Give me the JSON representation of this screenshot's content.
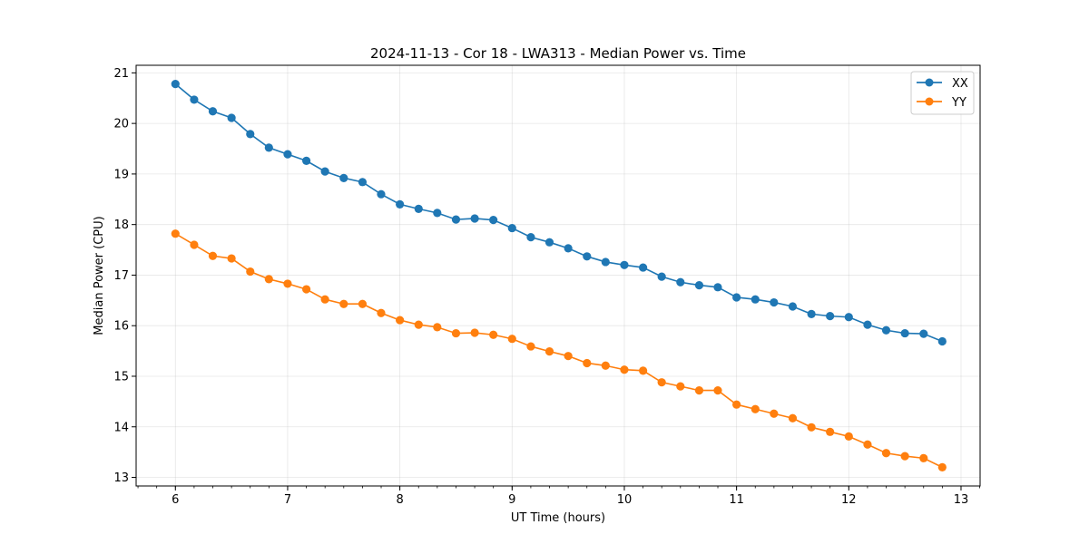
{
  "chart_data": {
    "type": "line",
    "title": "2024-11-13 - Cor 18 - LWA313 - Median Power vs. Time",
    "xlabel": "UT Time (hours)",
    "ylabel": "Median Power (CPU)",
    "xlim": [
      5.65,
      13.17
    ],
    "ylim": [
      12.83,
      21.15
    ],
    "xticks": [
      6,
      7,
      8,
      9,
      10,
      11,
      12,
      13
    ],
    "yticks": [
      13,
      14,
      15,
      16,
      17,
      18,
      19,
      20,
      21
    ],
    "grid": true,
    "legend_position": "top-right",
    "x": [
      6.0,
      6.167,
      6.333,
      6.5,
      6.667,
      6.833,
      7.0,
      7.167,
      7.333,
      7.5,
      7.667,
      7.833,
      8.0,
      8.167,
      8.333,
      8.5,
      8.667,
      8.833,
      9.0,
      9.167,
      9.333,
      9.5,
      9.667,
      9.833,
      10.0,
      10.167,
      10.333,
      10.5,
      10.667,
      10.833,
      11.0,
      11.167,
      11.333,
      11.5,
      11.667,
      11.833,
      12.0,
      12.167,
      12.333,
      12.5,
      12.667,
      12.833
    ],
    "series": [
      {
        "name": "XX",
        "color": "#1f77b4",
        "values": [
          20.78,
          20.47,
          20.24,
          20.11,
          19.79,
          19.52,
          19.39,
          19.26,
          19.05,
          18.92,
          18.84,
          18.6,
          18.4,
          18.31,
          18.23,
          18.1,
          18.12,
          18.09,
          17.93,
          17.75,
          17.65,
          17.53,
          17.37,
          17.26,
          17.2,
          17.15,
          16.97,
          16.86,
          16.8,
          16.76,
          16.56,
          16.52,
          16.46,
          16.38,
          16.23,
          16.19,
          16.17,
          16.02,
          15.91,
          15.85,
          15.84,
          15.69
        ]
      },
      {
        "name": "YY",
        "color": "#ff7f0e",
        "values": [
          17.82,
          17.6,
          17.38,
          17.33,
          17.07,
          16.92,
          16.83,
          16.72,
          16.52,
          16.43,
          16.43,
          16.25,
          16.11,
          16.02,
          15.97,
          15.85,
          15.86,
          15.82,
          15.74,
          15.59,
          15.49,
          15.4,
          15.26,
          15.21,
          15.13,
          15.11,
          14.88,
          14.8,
          14.72,
          14.72,
          14.44,
          14.35,
          14.26,
          14.17,
          13.99,
          13.9,
          13.81,
          13.65,
          13.48,
          13.42,
          13.38,
          13.2
        ]
      }
    ]
  }
}
